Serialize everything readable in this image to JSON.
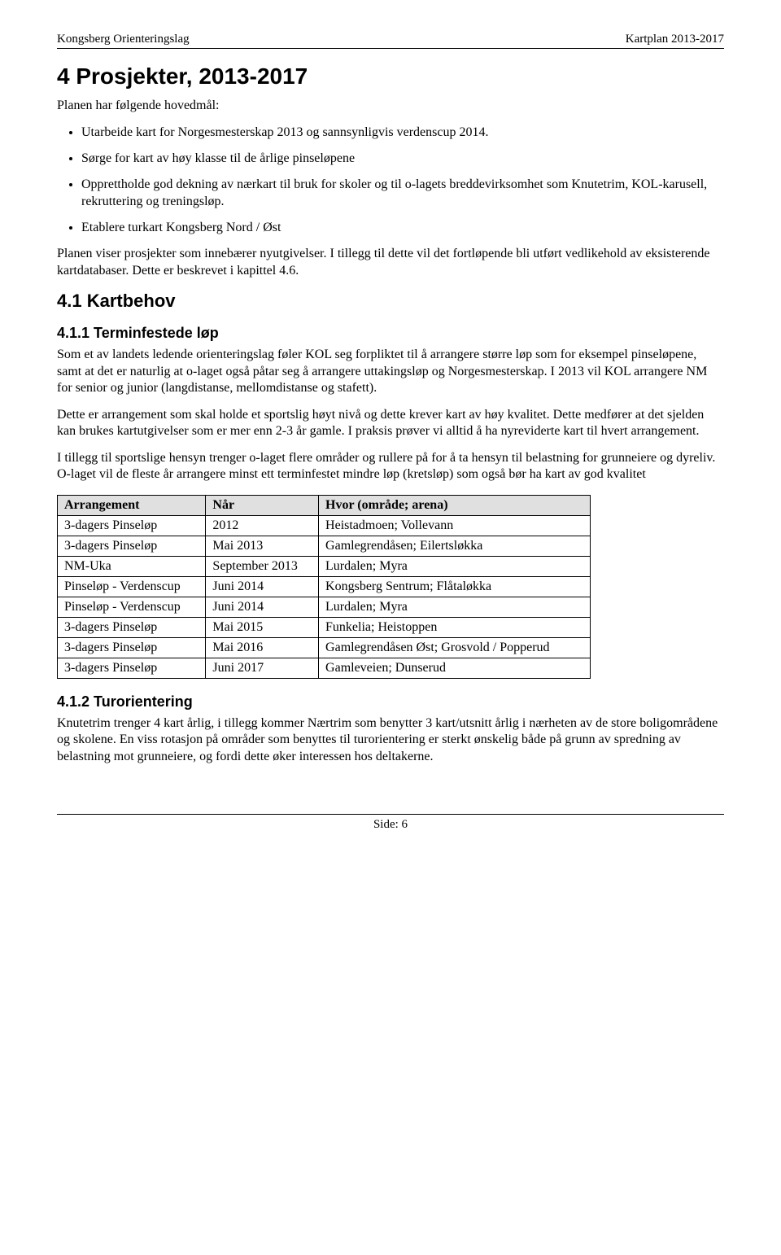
{
  "header": {
    "left": "Kongsberg Orienteringslag",
    "right": "Kartplan 2013-2017"
  },
  "h1": "4   Prosjekter, 2013-2017",
  "intro": "Planen har følgende hovedmål:",
  "bullets": [
    "Utarbeide kart for Norgesmesterskap 2013 og sannsynligvis verdenscup 2014.",
    "Sørge for kart av høy klasse til de årlige pinseløpene",
    "Opprettholde god dekning av nærkart til bruk for skoler og til o-lagets breddevirksomhet som Knutetrim, KOL-karusell, rekruttering og treningsløp.",
    "Etablere turkart Kongsberg Nord / Øst"
  ],
  "p_after_bullets": "Planen viser prosjekter som innebærer nyutgivelser. I tillegg til dette vil det fortløpende bli utført vedlikehold av eksisterende kartdatabaser. Dette er beskrevet i kapittel 4.6.",
  "h2": "4.1   Kartbehov",
  "h3_a": "4.1.1  Terminfestede løp",
  "sec_411_p1": "Som et av landets ledende orienteringslag føler KOL seg forpliktet til å arrangere større løp som for eksempel pinseløpene, samt at det er naturlig at o-laget også påtar seg å arrangere uttakingsløp og Norgesmesterskap. I 2013 vil KOL arrangere NM for senior og junior (langdistanse, mellomdistanse og stafett).",
  "sec_411_p2": "Dette er arrangement som skal holde et sportslig høyt nivå og dette krever kart av høy kvalitet. Dette medfører at det sjelden kan brukes kartutgivelser som er mer enn 2-3 år gamle. I praksis prøver vi alltid å ha nyreviderte kart til hvert arrangement.",
  "sec_411_p3": "I tillegg til sportslige hensyn trenger o-laget flere områder og rullere på for å ta hensyn til belastning for grunneiere og dyreliv. O-laget vil de fleste år arrangere minst ett terminfestet mindre løp (kretsløp) som også bør ha kart av god kvalitet",
  "table": {
    "columns": [
      "Arrangement",
      "Når",
      "Hvor (område; arena)"
    ],
    "header_bg": "#e0e0e0",
    "rows": [
      [
        "3-dagers Pinseløp",
        "2012",
        "Heistadmoen; Vollevann"
      ],
      [
        "3-dagers Pinseløp",
        "Mai 2013",
        "Gamlegrendåsen; Eilertsløkka"
      ],
      [
        "NM-Uka",
        "September 2013",
        "Lurdalen; Myra"
      ],
      [
        "Pinseløp - Verdenscup",
        "Juni 2014",
        "Kongsberg Sentrum; Flåtaløkka"
      ],
      [
        "Pinseløp - Verdenscup",
        "Juni 2014",
        "Lurdalen; Myra"
      ],
      [
        "3-dagers Pinseløp",
        "Mai 2015",
        "Funkelia; Heistoppen"
      ],
      [
        "3-dagers Pinseløp",
        "Mai 2016",
        "Gamlegrendåsen Øst; Grosvold / Popperud"
      ],
      [
        "3-dagers Pinseløp",
        "Juni 2017",
        "Gamleveien; Dunserud"
      ]
    ]
  },
  "h3_b": "4.1.2  Turorientering",
  "sec_412_p1": "Knutetrim trenger 4 kart årlig, i tillegg kommer Nærtrim som benytter 3 kart/utsnitt årlig i nærheten av de store boligområdene og skolene. En viss rotasjon på områder som benyttes til turorientering er sterkt ønskelig både på grunn av spredning av belastning mot grunneiere, og fordi dette øker interessen hos deltakerne.",
  "footer": "Side: 6"
}
